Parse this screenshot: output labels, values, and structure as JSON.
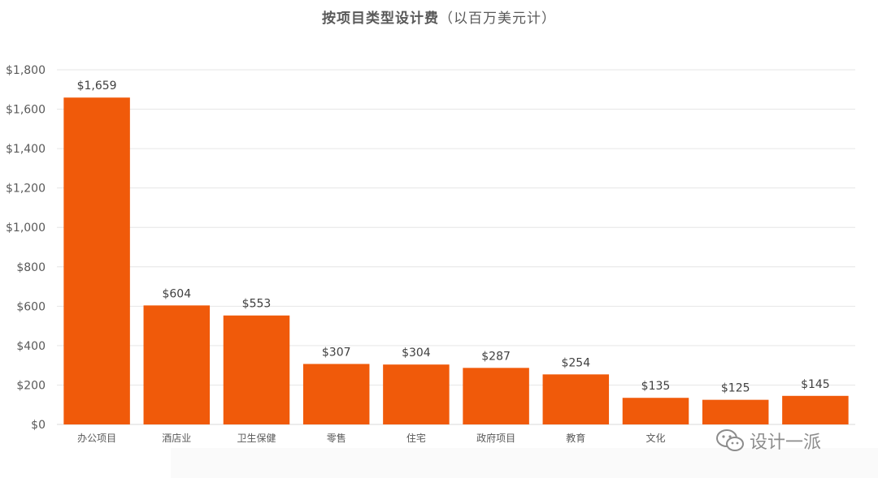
{
  "chart_data": {
    "type": "bar",
    "title_main": "按项目类型设计费",
    "title_sub": "（以百万美元计）",
    "categories": [
      "办公项目",
      "酒店业",
      "卫生保健",
      "零售",
      "住宅",
      "政府项目",
      "教育",
      "文化",
      "",
      ""
    ],
    "values": [
      1659,
      604,
      553,
      307,
      304,
      287,
      254,
      135,
      125,
      145
    ],
    "data_labels": [
      "$1,659",
      "$604",
      "$553",
      "$307",
      "$304",
      "$287",
      "$254",
      "$135",
      "$125",
      "$145"
    ],
    "y_ticks": [
      "$0",
      "$200",
      "$400",
      "$600",
      "$800",
      "$1,000",
      "$1,200",
      "$1,400",
      "$1,600",
      "$1,800"
    ],
    "ylim": [
      0,
      1800
    ],
    "grid": true,
    "bar_color": "#f05a0a"
  },
  "watermark": {
    "text": "设计一派",
    "icon": "wechat-icon"
  }
}
